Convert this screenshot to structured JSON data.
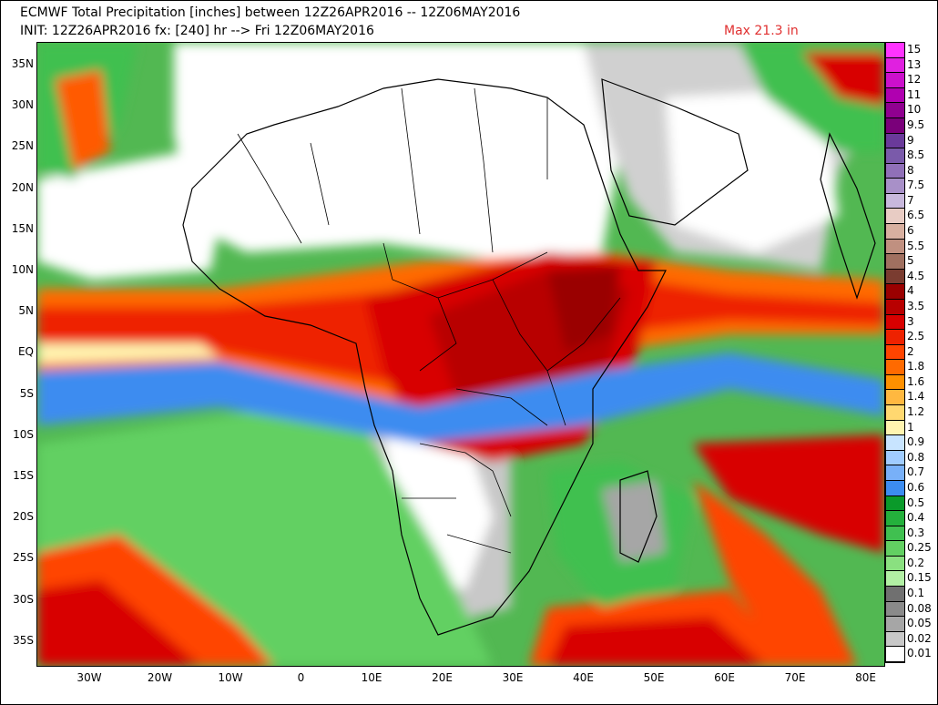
{
  "header": {
    "line1": "ECMWF Total Precipitation [inches] between 12Z26APR2016 -- 12Z06MAY2016",
    "line2": "INIT: 12Z26APR2016 fx: [240] hr --> Fri 12Z06MAY2016",
    "max_label": "Max 21.3 in"
  },
  "axes": {
    "lat_labels": [
      "35N",
      "30N",
      "25N",
      "20N",
      "15N",
      "10N",
      "5N",
      "EQ",
      "5S",
      "10S",
      "15S",
      "20S",
      "25S",
      "30S",
      "35S"
    ],
    "lon_labels": [
      "30W",
      "20W",
      "10W",
      "0",
      "10E",
      "20E",
      "30E",
      "40E",
      "50E",
      "60E",
      "70E",
      "80E"
    ]
  },
  "legend": [
    {
      "label": "15",
      "color": "#ff33ff"
    },
    {
      "label": "13",
      "color": "#e020e0"
    },
    {
      "label": "12",
      "color": "#cc10cc"
    },
    {
      "label": "11",
      "color": "#b000b0"
    },
    {
      "label": "10",
      "color": "#900090"
    },
    {
      "label": "9.5",
      "color": "#7a007a"
    },
    {
      "label": "9",
      "color": "#6a3a9a"
    },
    {
      "label": "8.5",
      "color": "#7a5aaa"
    },
    {
      "label": "8",
      "color": "#9070b8"
    },
    {
      "label": "7.5",
      "color": "#a890c8"
    },
    {
      "label": "7",
      "color": "#c8b8dc"
    },
    {
      "label": "6.5",
      "color": "#e8ccc4"
    },
    {
      "label": "6",
      "color": "#d8b0a0"
    },
    {
      "label": "5.5",
      "color": "#c09080"
    },
    {
      "label": "5",
      "color": "#a07060"
    },
    {
      "label": "4.5",
      "color": "#7a3c30"
    },
    {
      "label": "4",
      "color": "#9a0000"
    },
    {
      "label": "3.5",
      "color": "#b80000"
    },
    {
      "label": "3",
      "color": "#d80000"
    },
    {
      "label": "2.5",
      "color": "#ee2200"
    },
    {
      "label": "2",
      "color": "#ff4400"
    },
    {
      "label": "1.8",
      "color": "#ff6a00"
    },
    {
      "label": "1.6",
      "color": "#ff9000"
    },
    {
      "label": "1.4",
      "color": "#ffb840"
    },
    {
      "label": "1.2",
      "color": "#ffd870"
    },
    {
      "label": "1",
      "color": "#fff4b0"
    },
    {
      "label": "0.9",
      "color": "#c8e4ff"
    },
    {
      "label": "0.8",
      "color": "#a0ccff"
    },
    {
      "label": "0.7",
      "color": "#78b0f8"
    },
    {
      "label": "0.6",
      "color": "#3c8cf0"
    },
    {
      "label": "0.5",
      "color": "#0a9a2a"
    },
    {
      "label": "0.4",
      "color": "#24b03c"
    },
    {
      "label": "0.3",
      "color": "#40c050"
    },
    {
      "label": "0.25",
      "color": "#62d062"
    },
    {
      "label": "0.2",
      "color": "#8ae080"
    },
    {
      "label": "0.15",
      "color": "#b2f0a4"
    },
    {
      "label": "0.1",
      "color": "#707070"
    },
    {
      "label": "0.08",
      "color": "#8a8a8a"
    },
    {
      "label": "0.05",
      "color": "#a6a6a6"
    },
    {
      "label": "0.02",
      "color": "#c8c8c8"
    },
    {
      "label": "0.01",
      "color": "#ffffff"
    }
  ]
}
